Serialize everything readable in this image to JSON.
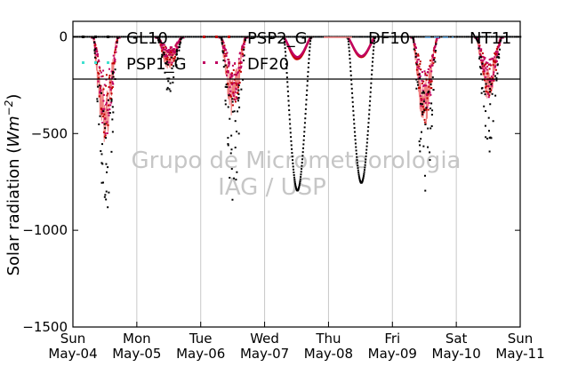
{
  "colors": {
    "GL10": "#000000",
    "PSP1_G": "#40e0d0",
    "PSP2_G": "#c00000",
    "DF20": "#c00060",
    "DF10": "#f08080",
    "NT11": "#4f94cd",
    "grid": "#c8c8c8"
  },
  "watermark": {
    "line1": "Grupo de Micrometeorologia",
    "line2": "IAG / USP"
  },
  "chart_data": {
    "type": "line",
    "ylabel": "Solar radiation (W m^-2)",
    "ylabel_parts": {
      "prefix": "Solar radiation (",
      "unit_main": "Wm",
      "unit_exp": "−2",
      "suffix": ")"
    },
    "ylim": [
      -1500,
      80
    ],
    "yticks": [
      0,
      -500,
      -1000,
      -1500
    ],
    "ytick_labels": [
      "0",
      "−500",
      "−1000",
      "−1500"
    ],
    "xlim_days": [
      0,
      7
    ],
    "xtick_labels": [
      {
        "day": "Sun",
        "date": "May-04"
      },
      {
        "day": "Mon",
        "date": "May-05"
      },
      {
        "day": "Tue",
        "date": "May-06"
      },
      {
        "day": "Wed",
        "date": "May-07"
      },
      {
        "day": "Thu",
        "date": "May-08"
      },
      {
        "day": "Fri",
        "date": "May-09"
      },
      {
        "day": "Sat",
        "date": "May-10"
      },
      {
        "day": "Sun",
        "date": "May-11"
      }
    ],
    "grid": "vertical",
    "legend_position": "top",
    "series": [
      {
        "name": "GL10",
        "style": "dots",
        "daily_peak": [
          -940,
          -290,
          -890,
          -790,
          -750,
          -820,
          -610
        ]
      },
      {
        "name": "PSP1_G",
        "style": "dots",
        "daily_peak": [
          null,
          null,
          null,
          null,
          null,
          null,
          null
        ]
      },
      {
        "name": "PSP2_G",
        "style": "dots",
        "daily_peak": [
          -530,
          -150,
          -380,
          -110,
          -100,
          -450,
          -320
        ]
      },
      {
        "name": "DF20",
        "style": "dots",
        "daily_peak": [
          -520,
          -140,
          -370,
          -100,
          -95,
          -430,
          -310
        ]
      },
      {
        "name": "DF10",
        "style": "line",
        "daily_peak": [
          -560,
          -170,
          -420,
          -120,
          -105,
          -480,
          -340
        ]
      },
      {
        "name": "NT11",
        "style": "dashed",
        "daily_peak": [
          0,
          0,
          0,
          0,
          0,
          0,
          0
        ]
      }
    ]
  }
}
